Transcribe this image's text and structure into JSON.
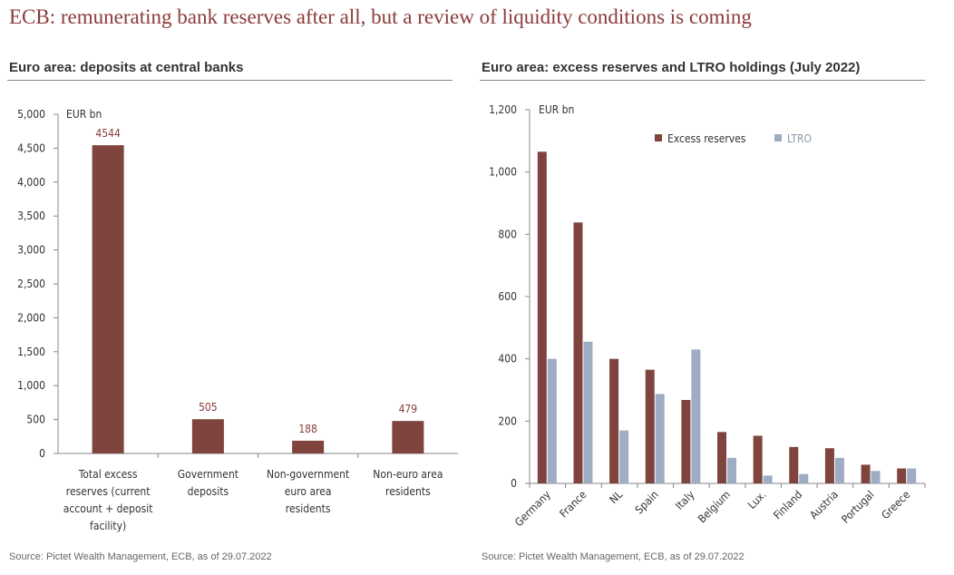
{
  "page": {
    "title": "ECB: remunerating bank reserves after all, but a review of liquidity conditions is coming"
  },
  "colors": {
    "excess": "#7e443d",
    "ltro": "#9eadc4",
    "title_red": "#8b3a3a"
  },
  "chart_data": [
    {
      "type": "bar",
      "title": "Euro area: deposits at central banks",
      "ylabel": "EUR bn",
      "categories": [
        [
          "Total excess",
          "reserves (current",
          "account + deposit",
          "facility)"
        ],
        [
          "Government",
          "deposits"
        ],
        [
          "Non-government",
          "euro area",
          "residents"
        ],
        [
          "Non-euro area",
          "residents"
        ]
      ],
      "values": [
        4544,
        505,
        188,
        479
      ],
      "data_labels": [
        "4544",
        "505",
        "188",
        "479"
      ],
      "ylim": [
        0,
        5000
      ],
      "yticks": [
        0,
        500,
        1000,
        1500,
        2000,
        2500,
        3000,
        3500,
        4000,
        4500,
        5000
      ],
      "ytick_labels": [
        "0",
        "500",
        "1,000",
        "1,500",
        "2,000",
        "2,500",
        "3,000",
        "3,500",
        "4,000",
        "4,500",
        "5,000"
      ],
      "source": "Source: Pictet Wealth Management, ECB, as of 29.07.2022"
    },
    {
      "type": "bar",
      "title": "Euro area: excess reserves and LTRO holdings (July 2022)",
      "ylabel": "EUR bn",
      "categories": [
        "Germany",
        "France",
        "NL",
        "Spain",
        "Italy",
        "Belgium",
        "Lux.",
        "Finland",
        "Austria",
        "Portugal",
        "Greece"
      ],
      "series": [
        {
          "name": "Excess reserves",
          "values": [
            1065,
            838,
            400,
            365,
            268,
            165,
            153,
            117,
            113,
            60,
            48
          ]
        },
        {
          "name": "LTRO",
          "values": [
            400,
            455,
            170,
            287,
            430,
            82,
            25,
            30,
            82,
            40,
            48
          ]
        }
      ],
      "ylim": [
        0,
        1200
      ],
      "yticks": [
        0,
        200,
        400,
        600,
        800,
        1000,
        1200
      ],
      "ytick_labels": [
        "0",
        "200",
        "400",
        "600",
        "800",
        "1,000",
        "1,200"
      ],
      "legend": "top-center",
      "source": "Source: Pictet Wealth Management, ECB, as of 29.07.2022"
    }
  ]
}
